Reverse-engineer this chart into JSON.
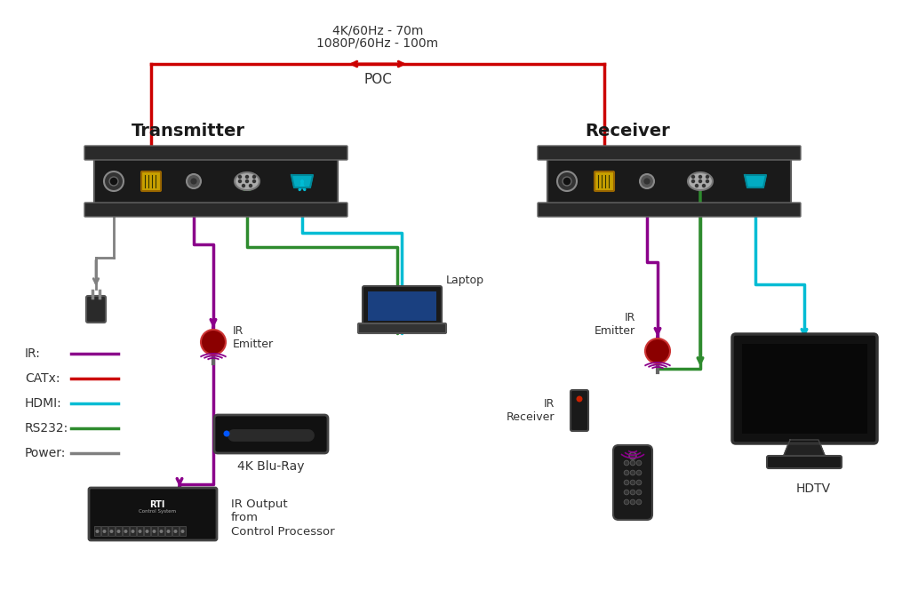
{
  "bg_color": "#ffffff",
  "title_top1": "4K/60Hz - 70m",
  "title_top2": "1080P/60Hz - 100m",
  "poc_label": "POC",
  "transmitter_label": "Transmitter",
  "receiver_label": "Receiver",
  "colors": {
    "ir": "#8B008B",
    "catx": "#cc0000",
    "hdmi": "#00bcd4",
    "rs232": "#2e8b2e",
    "power": "#808080",
    "device_body": "#1a1a1a",
    "device_shelf": "#2a2a2a"
  },
  "legend_items": [
    {
      "label": "IR:",
      "color": "#8B008B"
    },
    {
      "label": "CATx:",
      "color": "#cc0000"
    },
    {
      "label": "HDMI:",
      "color": "#00bcd4"
    },
    {
      "label": "RS232:",
      "color": "#2e8b2e"
    },
    {
      "label": "Power:",
      "color": "#808080"
    }
  ],
  "labels": {
    "ir_emitter_left": "IR\nEmitter",
    "ir_emitter_right": "IR\nEmitter",
    "ir_receiver": "IR\nReceiver",
    "laptop": "Laptop",
    "bluray": "4K Blu-Ray",
    "hdtv": "HDTV",
    "ir_output": "IR Output\nfrom\nControl Processor"
  }
}
